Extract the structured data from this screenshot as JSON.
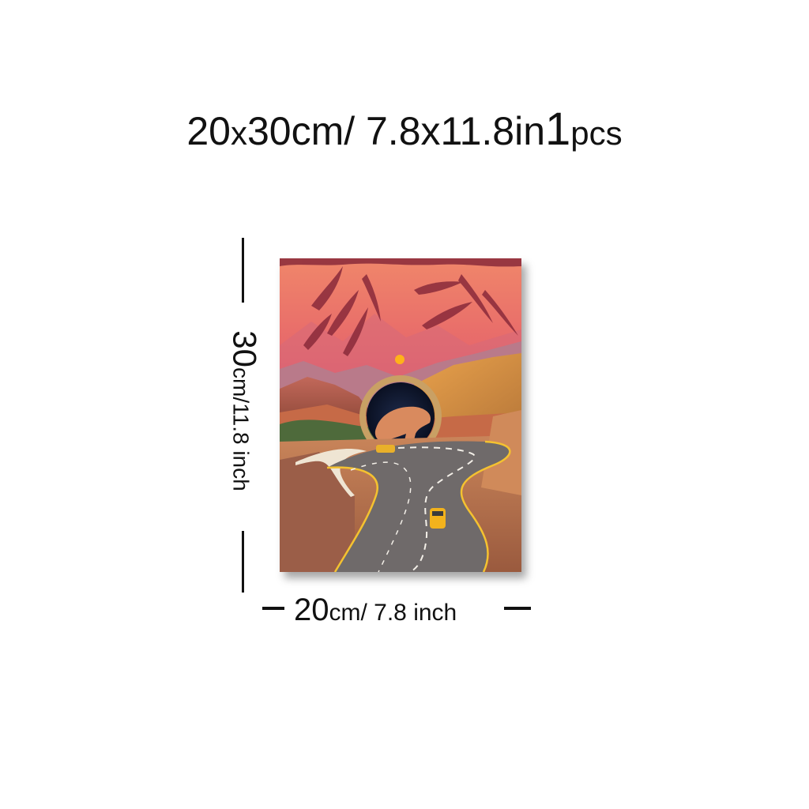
{
  "header": {
    "dims_prefix": "20",
    "dims_x": "x",
    "dims_main": "30cm/ 7.8x11.8in",
    "quantity": "1",
    "quantity_unit": "pcs"
  },
  "height_label": {
    "value": "30",
    "unit": "cm/11.8 inch"
  },
  "width_label": {
    "value": "20",
    "unit": "cm/ 7.8 inch"
  },
  "colors": {
    "sky_top": "#f0866a",
    "sky_mid": "#e0546a",
    "sun": "#ffb21a",
    "road": "#6f6a6a",
    "road_line": "#f4c230",
    "car": "#f2b21c"
  },
  "icons": {
    "height_marker": "vertical-dimension-line",
    "width_marker": "horizontal-dimension-line"
  }
}
